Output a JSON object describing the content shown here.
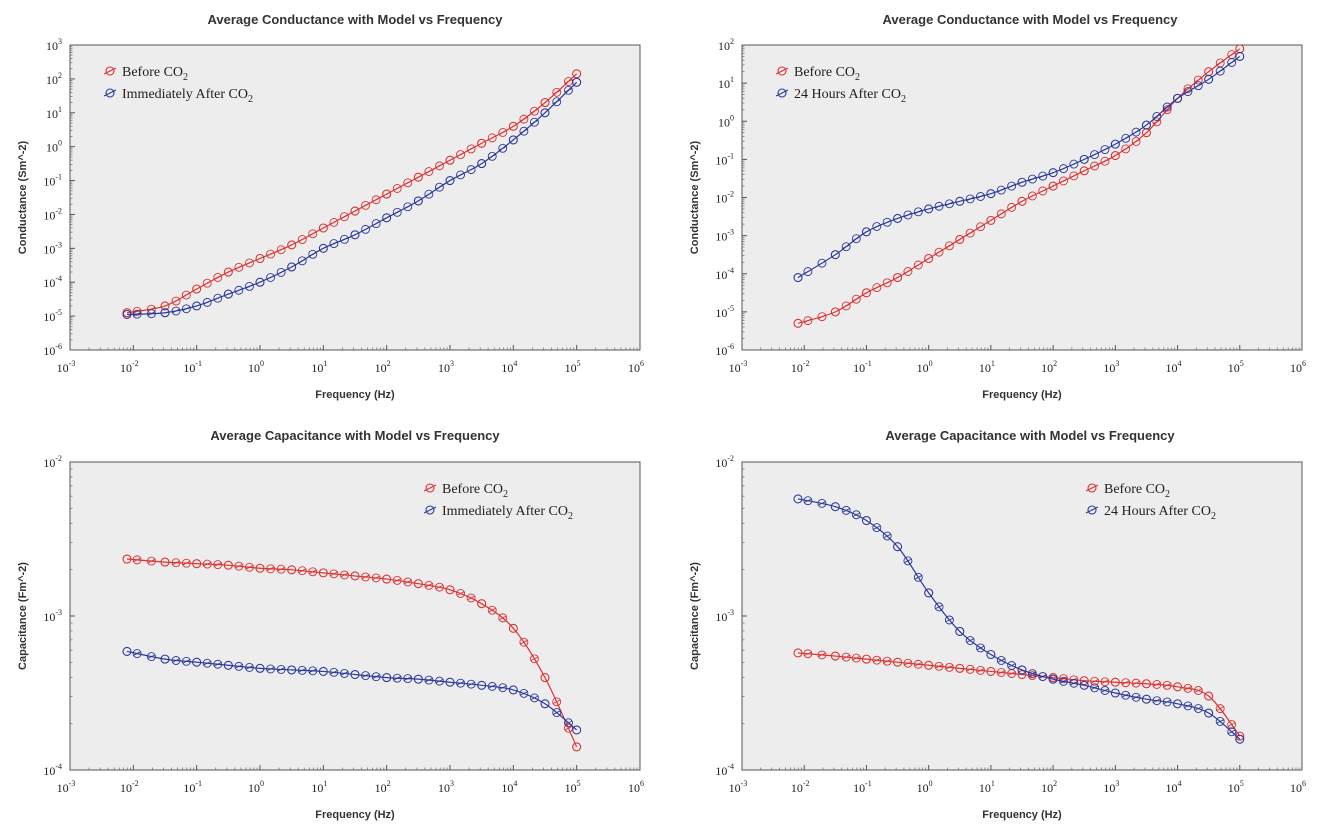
{
  "chart_data": [
    {
      "type": "scatter",
      "title": "Average Conductance with Model vs Frequency",
      "xlabel": "Frequency (Hz)",
      "ylabel": "Conductance (Sm^-2)",
      "xscale": "log",
      "yscale": "log",
      "xlim": [
        -3,
        6
      ],
      "ylim": [
        -6,
        3
      ],
      "x_ticks": [
        "-3",
        "-2",
        "-1",
        "0",
        "1",
        "2",
        "3",
        "4",
        "5",
        "6"
      ],
      "y_ticks": [
        "-6",
        "-5",
        "-4",
        "-3",
        "-2",
        "-1",
        "0",
        "1",
        "2",
        "3"
      ],
      "grid": false,
      "legend_position": "top-left",
      "series": [
        {
          "name": "Before CO2",
          "color": "#e03030",
          "points": [
            [
              -2.1,
              -4.9
            ],
            [
              -1.5,
              -4.7
            ],
            [
              -1,
              -4.2
            ],
            [
              -0.5,
              -3.7
            ],
            [
              0,
              -3.3
            ],
            [
              0.5,
              -2.9
            ],
            [
              1,
              -2.4
            ],
            [
              1.5,
              -1.9
            ],
            [
              2,
              -1.4
            ],
            [
              2.5,
              -0.9
            ],
            [
              3,
              -0.4
            ],
            [
              3.5,
              0.1
            ],
            [
              4,
              0.6
            ],
            [
              4.5,
              1.3
            ],
            [
              5,
              2.15
            ]
          ]
        },
        {
          "name": "Immediately After CO2",
          "color": "#2a3a9c",
          "points": [
            [
              -2.1,
              -4.95
            ],
            [
              -1.5,
              -4.9
            ],
            [
              -1,
              -4.7
            ],
            [
              -0.5,
              -4.35
            ],
            [
              0,
              -4.0
            ],
            [
              0.5,
              -3.55
            ],
            [
              1,
              -3.0
            ],
            [
              1.5,
              -2.6
            ],
            [
              2,
              -2.1
            ],
            [
              2.5,
              -1.6
            ],
            [
              3,
              -1.0
            ],
            [
              3.5,
              -0.5
            ],
            [
              4,
              0.2
            ],
            [
              4.5,
              1.0
            ],
            [
              5,
              1.9
            ]
          ]
        }
      ]
    },
    {
      "type": "scatter",
      "title": "Average Conductance with Model vs Frequency",
      "xlabel": "Frequency (Hz)",
      "ylabel": "Conductance (Sm^-2)",
      "xscale": "log",
      "yscale": "log",
      "xlim": [
        -3,
        6
      ],
      "ylim": [
        -6,
        2
      ],
      "x_ticks": [
        "-3",
        "-2",
        "-1",
        "0",
        "1",
        "2",
        "3",
        "4",
        "5",
        "6"
      ],
      "y_ticks": [
        "-6",
        "-5",
        "-4",
        "-3",
        "-2",
        "-1",
        "0",
        "1",
        "2"
      ],
      "grid": false,
      "legend_position": "top-left",
      "series": [
        {
          "name": "Before CO2",
          "color": "#e03030",
          "points": [
            [
              -2.1,
              -5.3
            ],
            [
              -1.5,
              -5.0
            ],
            [
              -1,
              -4.5
            ],
            [
              -0.5,
              -4.1
            ],
            [
              0,
              -3.6
            ],
            [
              0.5,
              -3.1
            ],
            [
              1,
              -2.6
            ],
            [
              1.5,
              -2.1
            ],
            [
              2,
              -1.7
            ],
            [
              2.5,
              -1.3
            ],
            [
              3,
              -0.9
            ],
            [
              3.5,
              -0.3
            ],
            [
              4,
              0.6
            ],
            [
              4.5,
              1.3
            ],
            [
              5,
              1.9
            ]
          ]
        },
        {
          "name": "24 Hours After CO2",
          "color": "#2a3a9c",
          "points": [
            [
              -2.1,
              -4.1
            ],
            [
              -1.5,
              -3.5
            ],
            [
              -1,
              -2.9
            ],
            [
              -0.5,
              -2.55
            ],
            [
              0,
              -2.3
            ],
            [
              0.5,
              -2.1
            ],
            [
              1,
              -1.9
            ],
            [
              1.5,
              -1.6
            ],
            [
              2,
              -1.35
            ],
            [
              2.5,
              -1.0
            ],
            [
              3,
              -0.6
            ],
            [
              3.5,
              -0.1
            ],
            [
              4,
              0.6
            ],
            [
              4.5,
              1.1
            ],
            [
              5,
              1.7
            ]
          ]
        }
      ]
    },
    {
      "type": "scatter",
      "title": "Average Capacitance with Model vs Frequency",
      "xlabel": "Frequency (Hz)",
      "ylabel": "Capacitance (Fm^-2)",
      "xscale": "log",
      "yscale": "log",
      "xlim": [
        -3,
        6
      ],
      "ylim": [
        -4,
        -2
      ],
      "x_ticks": [
        "-3",
        "-2",
        "-1",
        "0",
        "1",
        "2",
        "3",
        "4",
        "5",
        "6"
      ],
      "y_ticks": [
        "-4",
        "-3",
        "-2"
      ],
      "grid": false,
      "legend_position": "top-right",
      "series": [
        {
          "name": "Before CO2",
          "color": "#e03030",
          "points": [
            [
              -2.1,
              -2.63
            ],
            [
              -1.5,
              -2.65
            ],
            [
              -1,
              -2.66
            ],
            [
              -0.5,
              -2.67
            ],
            [
              0,
              -2.69
            ],
            [
              0.5,
              -2.7
            ],
            [
              1,
              -2.72
            ],
            [
              1.5,
              -2.74
            ],
            [
              2,
              -2.76
            ],
            [
              2.5,
              -2.79
            ],
            [
              3,
              -2.83
            ],
            [
              3.5,
              -2.92
            ],
            [
              4,
              -3.08
            ],
            [
              4.5,
              -3.4
            ],
            [
              5,
              -3.85
            ]
          ]
        },
        {
          "name": "Immediately After CO2",
          "color": "#2a3a9c",
          "points": [
            [
              -2.1,
              -3.23
            ],
            [
              -1.5,
              -3.28
            ],
            [
              -1,
              -3.3
            ],
            [
              -0.5,
              -3.32
            ],
            [
              0,
              -3.34
            ],
            [
              0.5,
              -3.35
            ],
            [
              1,
              -3.36
            ],
            [
              1.5,
              -3.38
            ],
            [
              2,
              -3.4
            ],
            [
              2.5,
              -3.41
            ],
            [
              3,
              -3.43
            ],
            [
              3.5,
              -3.45
            ],
            [
              4,
              -3.48
            ],
            [
              4.5,
              -3.57
            ],
            [
              5,
              -3.74
            ]
          ]
        }
      ]
    },
    {
      "type": "scatter",
      "title": "Average Capacitance with Model vs Frequency",
      "xlabel": "Frequency (Hz)",
      "ylabel": "Capacitance (Fm^-2)",
      "xscale": "log",
      "yscale": "log",
      "xlim": [
        -3,
        6
      ],
      "ylim": [
        -4,
        -2
      ],
      "x_ticks": [
        "-3",
        "-2",
        "-1",
        "0",
        "1",
        "2",
        "3",
        "4",
        "5",
        "6"
      ],
      "y_ticks": [
        "-4",
        "-3",
        "-2"
      ],
      "grid": false,
      "legend_position": "top-right",
      "series": [
        {
          "name": "Before CO2",
          "color": "#e03030",
          "points": [
            [
              -2.1,
              -3.24
            ],
            [
              -1.5,
              -3.26
            ],
            [
              -1,
              -3.28
            ],
            [
              -0.5,
              -3.3
            ],
            [
              0,
              -3.32
            ],
            [
              0.5,
              -3.34
            ],
            [
              1,
              -3.36
            ],
            [
              1.5,
              -3.38
            ],
            [
              2,
              -3.4
            ],
            [
              2.5,
              -3.42
            ],
            [
              3,
              -3.43
            ],
            [
              3.5,
              -3.44
            ],
            [
              4,
              -3.46
            ],
            [
              4.5,
              -3.52
            ],
            [
              5,
              -3.78
            ]
          ]
        },
        {
          "name": "24 Hours After CO2",
          "color": "#2a3a9c",
          "points": [
            [
              -2.1,
              -2.24
            ],
            [
              -1.5,
              -2.29
            ],
            [
              -1,
              -2.38
            ],
            [
              -0.5,
              -2.55
            ],
            [
              0,
              -2.85
            ],
            [
              0.5,
              -3.1
            ],
            [
              1,
              -3.25
            ],
            [
              1.5,
              -3.35
            ],
            [
              2,
              -3.41
            ],
            [
              2.5,
              -3.45
            ],
            [
              3,
              -3.5
            ],
            [
              3.5,
              -3.54
            ],
            [
              4,
              -3.57
            ],
            [
              4.5,
              -3.63
            ],
            [
              5,
              -3.8
            ]
          ]
        }
      ]
    }
  ]
}
